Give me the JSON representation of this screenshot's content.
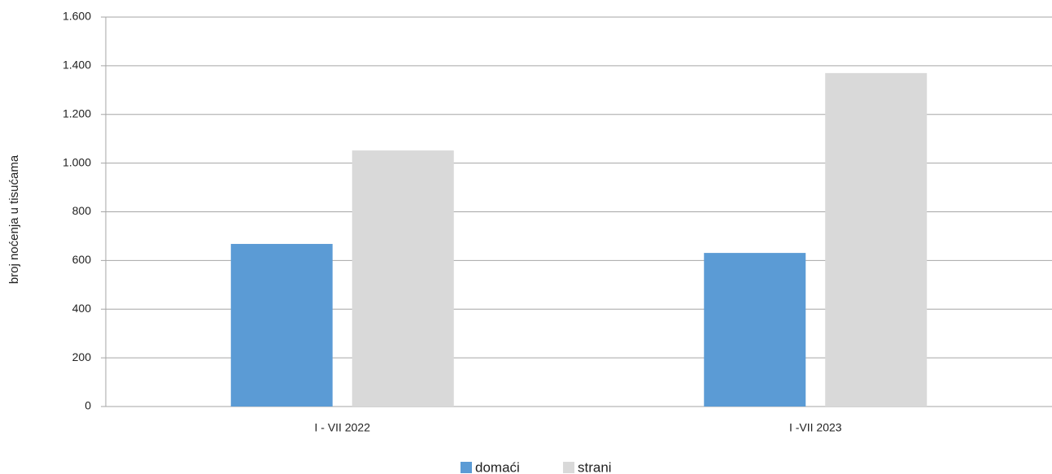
{
  "chart_data": {
    "type": "bar",
    "y_label": "broj noćenja u tisućama",
    "categories": [
      "I - VII 2022",
      "I -VII 2023"
    ],
    "series": [
      {
        "name": "domaći",
        "color": "#5b9bd5",
        "values": [
          668,
          631
        ]
      },
      {
        "name": "strani",
        "color": "#d9d9d9",
        "values": [
          1052,
          1370
        ]
      }
    ],
    "ylim": [
      0,
      1600
    ],
    "yticks": [
      0,
      200,
      400,
      600,
      800,
      {
        "value": 1000,
        "label": "1.000"
      },
      {
        "value": 1200,
        "label": "1.200"
      },
      {
        "value": 1400,
        "label": "1.400"
      },
      {
        "value": 1600,
        "label": "1.600"
      }
    ],
    "grid": true,
    "legend": "bottom"
  }
}
